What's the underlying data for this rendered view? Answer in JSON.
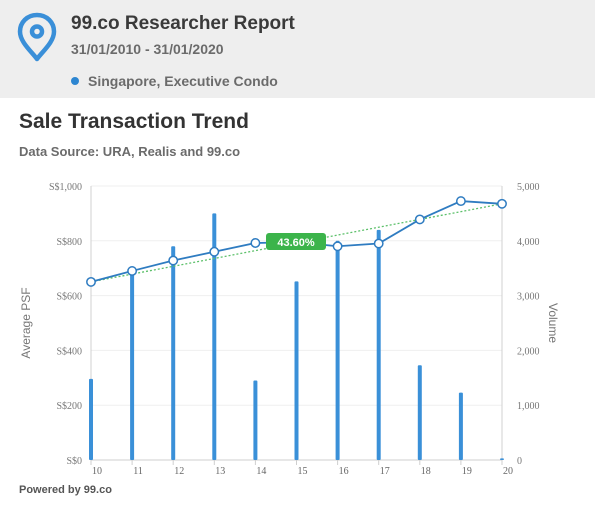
{
  "header": {
    "title": "99.co Researcher Report",
    "date_range": "31/01/2010 - 31/01/2020",
    "legend_label": "Singapore, Executive Condo",
    "legend_color": "#2d86d1",
    "logo_icon": "map-pin-icon"
  },
  "chart_title": "Sale Transaction Trend",
  "chart_subtitle": "Data Source: URA, Realis and 99.co",
  "footer": "Powered by 99.co",
  "chart_data": {
    "type": "bar+line",
    "categories": [
      "10",
      "11",
      "12",
      "13",
      "14",
      "15",
      "16",
      "17",
      "18",
      "19",
      "20"
    ],
    "y_left": {
      "label": "Average PSF",
      "ticks": [
        "S$0",
        "S$200",
        "S$400",
        "S$600",
        "S$800",
        "S$1,000"
      ],
      "range": [
        0,
        1000
      ]
    },
    "y_right": {
      "label": "Volume",
      "ticks": [
        "0",
        "1,000",
        "2,000",
        "3,000",
        "4,000",
        "5,000"
      ],
      "range": [
        0,
        5000
      ]
    },
    "series": [
      {
        "type": "bar",
        "axis": "right",
        "color": "#3a90d8",
        "values": [
          1480,
          3400,
          3900,
          4500,
          1450,
          3260,
          4000,
          4200,
          1730,
          1230,
          30
        ]
      },
      {
        "type": "line",
        "axis": "left",
        "color": "#2f7cc1",
        "values": [
          650,
          690,
          728,
          760,
          792,
          795,
          780,
          790,
          878,
          945,
          935
        ]
      },
      {
        "type": "trendline",
        "axis": "left",
        "color": "#5cc06a",
        "start": 650,
        "end": 935
      }
    ],
    "annotation": {
      "text": "43.60%",
      "color": "#3cb44b"
    },
    "grid": true
  }
}
